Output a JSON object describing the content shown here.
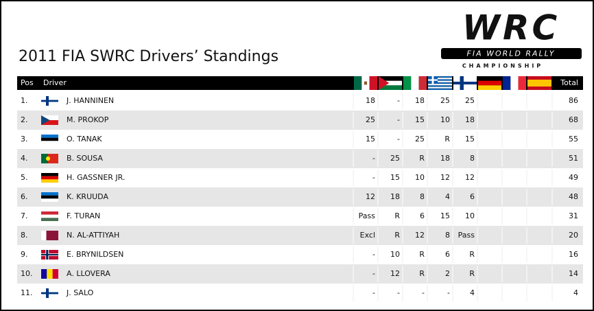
{
  "header": {
    "title": "2011 FIA SWRC Drivers’ Standings"
  },
  "logo": {
    "wordmark": "WRC",
    "line1": "FIA WORLD RALLY",
    "line2": "CHAMPIONSHIP"
  },
  "table": {
    "columns": [
      "Pos",
      "Driver",
      "Total"
    ],
    "rows": [
      [
        "1.",
        "J. HANNINEN",
        "18",
        "-",
        "18",
        "25",
        "25",
        "86"
      ],
      [
        "2.",
        "M. PROKOP",
        "25",
        "-",
        "15",
        "10",
        "18",
        "68"
      ],
      [
        "3.",
        "O. TANAK",
        "15",
        "-",
        "25",
        "R",
        "15",
        "55"
      ],
      [
        "4.",
        "B. SOUSA",
        "-",
        "25",
        "R",
        "18",
        "8",
        "51"
      ],
      [
        "5.",
        "H. GASSNER JR.",
        "-",
        "15",
        "10",
        "12",
        "12",
        "49"
      ],
      [
        "6.",
        "K. KRUUDA",
        "12",
        "18",
        "8",
        "4",
        "6",
        "48"
      ],
      [
        "7.",
        "F. TURAN",
        "Pass",
        "R",
        "6",
        "15",
        "10",
        "31"
      ],
      [
        "8.",
        "N. AL-ATTIYAH",
        "Excl",
        "R",
        "12",
        "8",
        "Pass",
        "20"
      ],
      [
        "9.",
        "E. BRYNILDSEN",
        "-",
        "10",
        "R",
        "6",
        "R",
        "16"
      ],
      [
        "10.",
        "A. LLOVERA",
        "-",
        "12",
        "R",
        "2",
        "R",
        "14"
      ],
      [
        "11.",
        "J. SALO",
        "-",
        "-",
        "-",
        "-",
        "4",
        "4"
      ]
    ]
  }
}
